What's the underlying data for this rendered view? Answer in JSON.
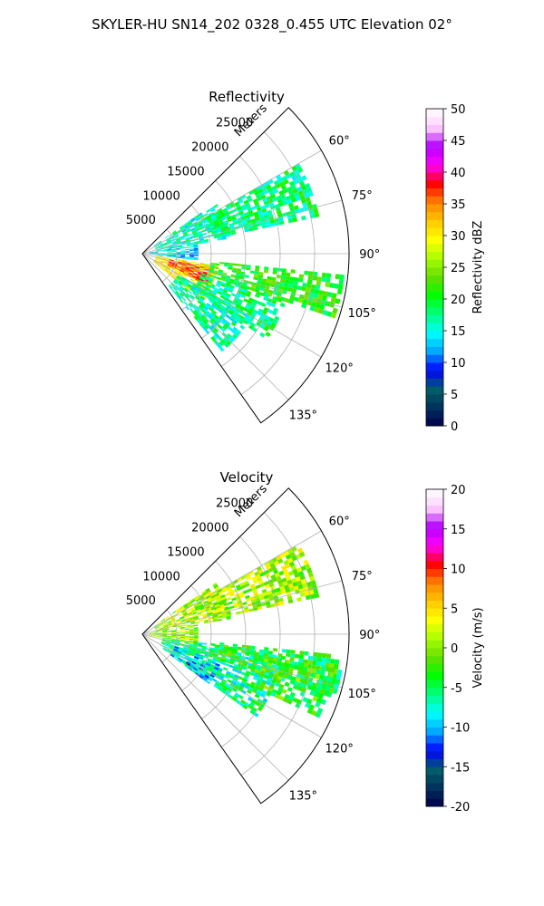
{
  "figure": {
    "title": "SKYLER-HU  SN14_202  0328_0.455 UTC Elevation 02°"
  },
  "colormap": {
    "name": "pyart_NWSRef",
    "stops": [
      "#00004c",
      "#00315c",
      "#006068",
      "#0000ff",
      "#00a8ff",
      "#00ffff",
      "#00ff80",
      "#00ff00",
      "#66dd00",
      "#aaff00",
      "#ffff00",
      "#ffc800",
      "#ff8000",
      "#ff0000",
      "#ff00ff",
      "#b400ff",
      "#ffd0ff",
      "#ffffff"
    ]
  },
  "chart_data": [
    {
      "type": "heatmap",
      "subtype": "polar-sector-ppi",
      "title": "Reflectivity",
      "range_label": "Meters",
      "range_ticks": [
        "5000",
        "10000",
        "15000",
        "20000",
        "25000"
      ],
      "range_values": [
        5000,
        10000,
        15000,
        20000,
        25000
      ],
      "range_max": 30000,
      "azimuth_ticks": [
        "60°",
        "75°",
        "90°",
        "105°",
        "120°",
        "135°"
      ],
      "azimuth_values": [
        60,
        75,
        90,
        105,
        120,
        135
      ],
      "azimuth_range": [
        45,
        145
      ],
      "grid": true,
      "colorbar": {
        "label": "Reflectivity dBZ",
        "ticks": [
          "0",
          "5",
          "10",
          "15",
          "20",
          "25",
          "30",
          "35",
          "40",
          "45",
          "50"
        ],
        "range": [
          0,
          50
        ]
      },
      "echo_regions": [
        {
          "az": [
            99,
            128
          ],
          "r": [
            2000,
            11000
          ],
          "value": 30
        },
        {
          "az": [
            102,
            116
          ],
          "r": [
            4000,
            10000
          ],
          "value": 36
        },
        {
          "az": [
            96,
            108
          ],
          "r": [
            10000,
            29000
          ],
          "value": 21
        },
        {
          "az": [
            108,
            124
          ],
          "r": [
            9000,
            22000
          ],
          "value": 18
        },
        {
          "az": [
            55,
            80
          ],
          "r": [
            2000,
            13000
          ],
          "value": 16
        },
        {
          "az": [
            80,
            96
          ],
          "r": [
            1000,
            8000
          ],
          "value": 14
        },
        {
          "az": [
            60,
            78
          ],
          "r": [
            10000,
            26000
          ],
          "value": 18
        },
        {
          "az": [
            120,
            140
          ],
          "r": [
            6000,
            18000
          ],
          "value": 17
        }
      ]
    },
    {
      "type": "heatmap",
      "subtype": "polar-sector-ppi",
      "title": "Velocity",
      "range_label": "Meters",
      "range_ticks": [
        "5000",
        "10000",
        "15000",
        "20000",
        "25000"
      ],
      "range_values": [
        5000,
        10000,
        15000,
        20000,
        25000
      ],
      "range_max": 30000,
      "azimuth_ticks": [
        "60°",
        "75°",
        "90°",
        "105°",
        "120°",
        "135°"
      ],
      "azimuth_values": [
        60,
        75,
        90,
        105,
        120,
        135
      ],
      "azimuth_range": [
        45,
        145
      ],
      "grid": true,
      "colorbar": {
        "label": "Velocity (m/s)",
        "ticks": [
          "-20",
          "-15",
          "-10",
          "-5",
          "0",
          "5",
          "10",
          "15",
          "20"
        ],
        "range": [
          -20,
          20
        ]
      },
      "echo_regions": [
        {
          "az": [
            98,
            126
          ],
          "r": [
            3000,
            20000
          ],
          "value": -6
        },
        {
          "az": [
            96,
            108
          ],
          "r": [
            10000,
            29000
          ],
          "value": -4
        },
        {
          "az": [
            110,
            126
          ],
          "r": [
            5000,
            12000
          ],
          "value": -9
        },
        {
          "az": [
            55,
            80
          ],
          "r": [
            2000,
            13000
          ],
          "value": 1
        },
        {
          "az": [
            80,
            100
          ],
          "r": [
            1000,
            8000
          ],
          "value": 0
        },
        {
          "az": [
            60,
            78
          ],
          "r": [
            10000,
            26000
          ],
          "value": 1
        },
        {
          "az": [
            100,
            115
          ],
          "r": [
            18000,
            28000
          ],
          "value": -3
        }
      ]
    }
  ]
}
